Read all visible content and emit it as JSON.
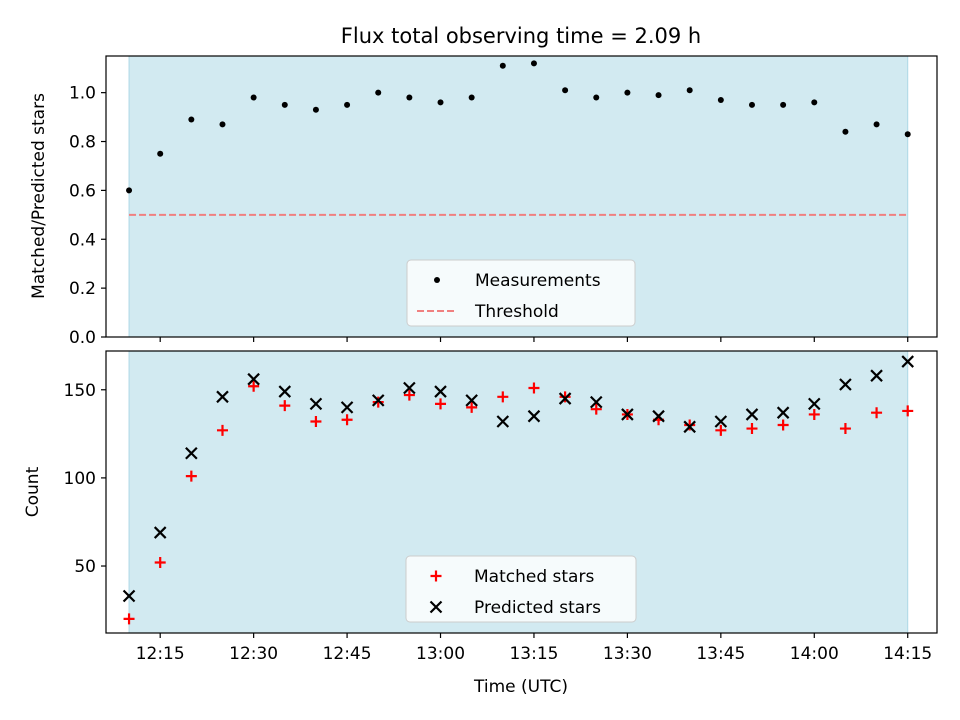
{
  "figure": {
    "title": "Flux total observing time = 2.09 h",
    "shade_color": "#add8e6"
  },
  "chart_data": [
    {
      "type": "scatter",
      "ylabel": "Matched/Predicted stars",
      "xlabel": "",
      "ylim": [
        0,
        1.15
      ],
      "yticks": [
        0.0,
        0.2,
        0.4,
        0.6,
        0.8,
        1.0
      ],
      "ytick_labels": [
        "0.0",
        "0.2",
        "0.4",
        "0.6",
        "0.8",
        "1.0"
      ],
      "x": [
        "12:10",
        "12:15",
        "12:20",
        "12:25",
        "12:30",
        "12:35",
        "12:40",
        "12:45",
        "12:50",
        "12:55",
        "13:00",
        "13:05",
        "13:10",
        "13:15",
        "13:20",
        "13:25",
        "13:30",
        "13:35",
        "13:40",
        "13:45",
        "13:50",
        "13:55",
        "14:00",
        "14:05",
        "14:10",
        "14:15"
      ],
      "series": [
        {
          "name": "Measurements",
          "marker": "dot",
          "color": "#000000",
          "values": [
            0.6,
            0.75,
            0.89,
            0.87,
            0.98,
            0.95,
            0.93,
            0.95,
            1.0,
            0.98,
            0.96,
            0.98,
            1.11,
            1.12,
            1.01,
            0.98,
            1.0,
            0.99,
            1.01,
            0.97,
            0.95,
            0.95,
            0.96,
            0.84,
            0.87,
            0.83
          ]
        }
      ],
      "threshold": {
        "name": "Threshold",
        "value": 0.5,
        "color": "#f08080"
      },
      "legend": "lower center"
    },
    {
      "type": "scatter",
      "ylabel": "Count",
      "xlabel": "Time (UTC)",
      "ylim": [
        12,
        172
      ],
      "yticks": [
        50,
        100,
        150
      ],
      "ytick_labels": [
        "50",
        "100",
        "150"
      ],
      "xticks": [
        "12:15",
        "12:30",
        "12:45",
        "13:00",
        "13:15",
        "13:30",
        "13:45",
        "14:00",
        "14:15"
      ],
      "x": [
        "12:10",
        "12:15",
        "12:20",
        "12:25",
        "12:30",
        "12:35",
        "12:40",
        "12:45",
        "12:50",
        "12:55",
        "13:00",
        "13:05",
        "13:10",
        "13:15",
        "13:20",
        "13:25",
        "13:30",
        "13:35",
        "13:40",
        "13:45",
        "13:50",
        "13:55",
        "14:00",
        "14:05",
        "14:10",
        "14:15"
      ],
      "series": [
        {
          "name": "Matched stars",
          "marker": "plus",
          "color": "#ff0000",
          "values": [
            20,
            52,
            101,
            127,
            152,
            141,
            132,
            133,
            143,
            147,
            142,
            140,
            146,
            151,
            146,
            139,
            136,
            133,
            130,
            127,
            128,
            130,
            136,
            128,
            137,
            138
          ]
        },
        {
          "name": "Predicted stars",
          "marker": "x",
          "color": "#000000",
          "values": [
            33,
            69,
            114,
            146,
            156,
            149,
            142,
            140,
            144,
            151,
            149,
            144,
            132,
            135,
            145,
            143,
            136,
            135,
            129,
            132,
            136,
            137,
            142,
            153,
            158,
            166
          ]
        }
      ],
      "legend": "lower center"
    }
  ]
}
